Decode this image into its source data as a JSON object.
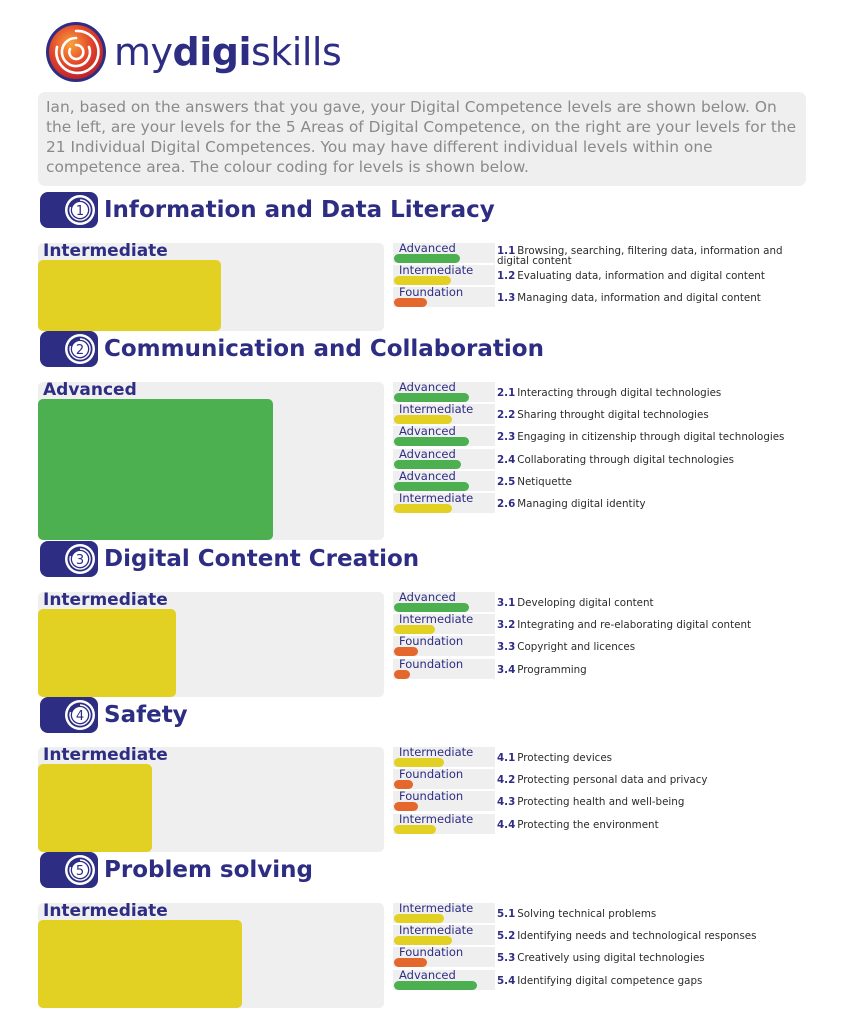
{
  "logo": {
    "prefix": "my",
    "bold": "digi",
    "suffix": "skills"
  },
  "intro": "Ian, based on the answers that you gave, your Digital Competence levels are shown below. On the left, are your levels for the 5 Areas of Digital Competence, on the right are your levels for the 21 Individual Digital Competences. You may have different individual levels within one competence area. The colour coding for levels is shown below.",
  "colors": {
    "brand": "#2e2d84",
    "Advanced": "#4caf50",
    "Intermediate": "#e2d122",
    "Foundation": "#e4672e",
    "panel": "#efefef"
  },
  "areas": [
    {
      "number": "1",
      "title": "Information and Data Literacy",
      "level": "Intermediate",
      "fill": 0.53,
      "competences": [
        {
          "num": "1.1",
          "label": "Browsing, searching, filtering data, information and digital content",
          "level": "Advanced",
          "fill": 0.66
        },
        {
          "num": "1.2",
          "label": "Evaluating data, information and digital content",
          "level": "Intermediate",
          "fill": 0.57
        },
        {
          "num": "1.3",
          "label": "Managing data, information and digital content",
          "level": "Foundation",
          "fill": 0.33
        }
      ]
    },
    {
      "number": "2",
      "title": "Communication and Collaboration",
      "level": "Advanced",
      "fill": 0.68,
      "competences": [
        {
          "num": "2.1",
          "label": "Interacting through digital technologies",
          "level": "Advanced",
          "fill": 0.75
        },
        {
          "num": "2.2",
          "label": "Sharing throught digital technologies",
          "level": "Intermediate",
          "fill": 0.58
        },
        {
          "num": "2.3",
          "label": "Engaging in citizenship through digital technologies",
          "level": "Advanced",
          "fill": 0.75
        },
        {
          "num": "2.4",
          "label": "Collaborating through digital technologies",
          "level": "Advanced",
          "fill": 0.67
        },
        {
          "num": "2.5",
          "label": "Netiquette",
          "level": "Advanced",
          "fill": 0.75
        },
        {
          "num": "2.6",
          "label": "Managing digital identity",
          "level": "Intermediate",
          "fill": 0.58
        }
      ]
    },
    {
      "number": "3",
      "title": "Digital Content Creation",
      "level": "Intermediate",
      "fill": 0.4,
      "competences": [
        {
          "num": "3.1",
          "label": "Developing digital content",
          "level": "Advanced",
          "fill": 0.75
        },
        {
          "num": "3.2",
          "label": "Integrating and re-elaborating digital content",
          "level": "Intermediate",
          "fill": 0.41
        },
        {
          "num": "3.3",
          "label": "Copyright and licences",
          "level": "Foundation",
          "fill": 0.24
        },
        {
          "num": "3.4",
          "label": "Programming",
          "level": "Foundation",
          "fill": 0.16
        }
      ]
    },
    {
      "number": "4",
      "title": "Safety",
      "level": "Intermediate",
      "fill": 0.33,
      "competences": [
        {
          "num": "4.1",
          "label": "Protecting devices",
          "level": "Intermediate",
          "fill": 0.5
        },
        {
          "num": "4.2",
          "label": "Protecting personal data and privacy",
          "level": "Foundation",
          "fill": 0.19
        },
        {
          "num": "4.3",
          "label": "Protecting health and well-being",
          "level": "Foundation",
          "fill": 0.24
        },
        {
          "num": "4.4",
          "label": "Protecting the environment",
          "level": "Intermediate",
          "fill": 0.42
        }
      ]
    },
    {
      "number": "5",
      "title": "Problem solving",
      "level": "Intermediate",
      "fill": 0.59,
      "competences": [
        {
          "num": "5.1",
          "label": "Solving technical problems",
          "level": "Intermediate",
          "fill": 0.5
        },
        {
          "num": "5.2",
          "label": "Identifying needs and technological responses",
          "level": "Intermediate",
          "fill": 0.58
        },
        {
          "num": "5.3",
          "label": "Creatively using digital technologies",
          "level": "Foundation",
          "fill": 0.33
        },
        {
          "num": "5.4",
          "label": "Identifying digital competence gaps",
          "level": "Advanced",
          "fill": 0.83
        }
      ]
    }
  ]
}
